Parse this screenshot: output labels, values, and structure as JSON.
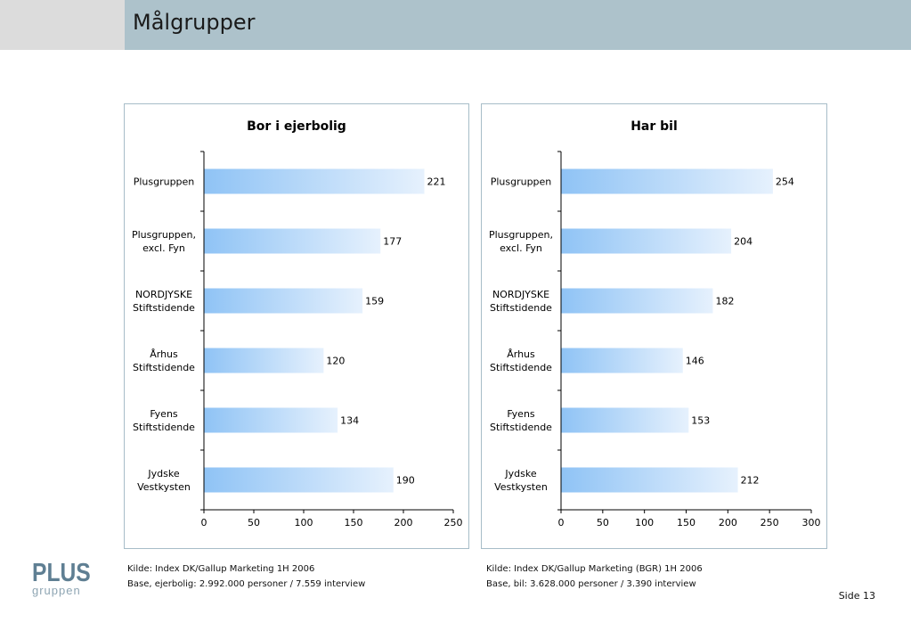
{
  "page": {
    "title": "Målgrupper",
    "page_number": "Side 13"
  },
  "logo": {
    "main": "PLUS",
    "sub": "gruppen"
  },
  "footnotes": {
    "left": {
      "source": "Kilde: Index DK/Gallup Marketing 1H 2006",
      "base": "Base, ejerbolig: 2.992.000 personer / 7.559 interview"
    },
    "right": {
      "source": "Kilde: Index DK/Gallup Marketing (BGR) 1H 2006",
      "base": "Base, bil: 3.628.000 personer / 3.390 interview"
    }
  },
  "colors": {
    "bar_start": "#8fc3f5",
    "bar_end": "#e6f1fd",
    "header": "#adc2cb",
    "panel_border": "#a7bdc8"
  },
  "chart_data": [
    {
      "type": "bar",
      "orientation": "horizontal",
      "title": "Bor i ejerbolig",
      "categories": [
        [
          "Plusgruppen"
        ],
        [
          "Plusgruppen,",
          "excl. Fyn"
        ],
        [
          "NORDJYSKE",
          "Stiftstidende"
        ],
        [
          "Århus",
          "Stiftstidende"
        ],
        [
          "Fyens",
          "Stiftstidende"
        ],
        [
          "Jydske",
          "Vestkysten"
        ]
      ],
      "values": [
        221,
        177,
        159,
        120,
        134,
        190
      ],
      "xlim": [
        0,
        250
      ],
      "xticks": [
        0,
        50,
        100,
        150,
        200,
        250
      ],
      "grid": false,
      "legend": "none"
    },
    {
      "type": "bar",
      "orientation": "horizontal",
      "title": "Har bil",
      "categories": [
        [
          "Plusgruppen"
        ],
        [
          "Plusgruppen,",
          "excl. Fyn"
        ],
        [
          "NORDJYSKE",
          "Stiftstidende"
        ],
        [
          "Århus",
          "Stiftstidende"
        ],
        [
          "Fyens",
          "Stiftstidende"
        ],
        [
          "Jydske",
          "Vestkysten"
        ]
      ],
      "values": [
        254,
        204,
        182,
        146,
        153,
        212
      ],
      "xlim": [
        0,
        300
      ],
      "xticks": [
        0,
        50,
        100,
        150,
        200,
        250,
        300
      ],
      "grid": false,
      "legend": "none"
    }
  ]
}
